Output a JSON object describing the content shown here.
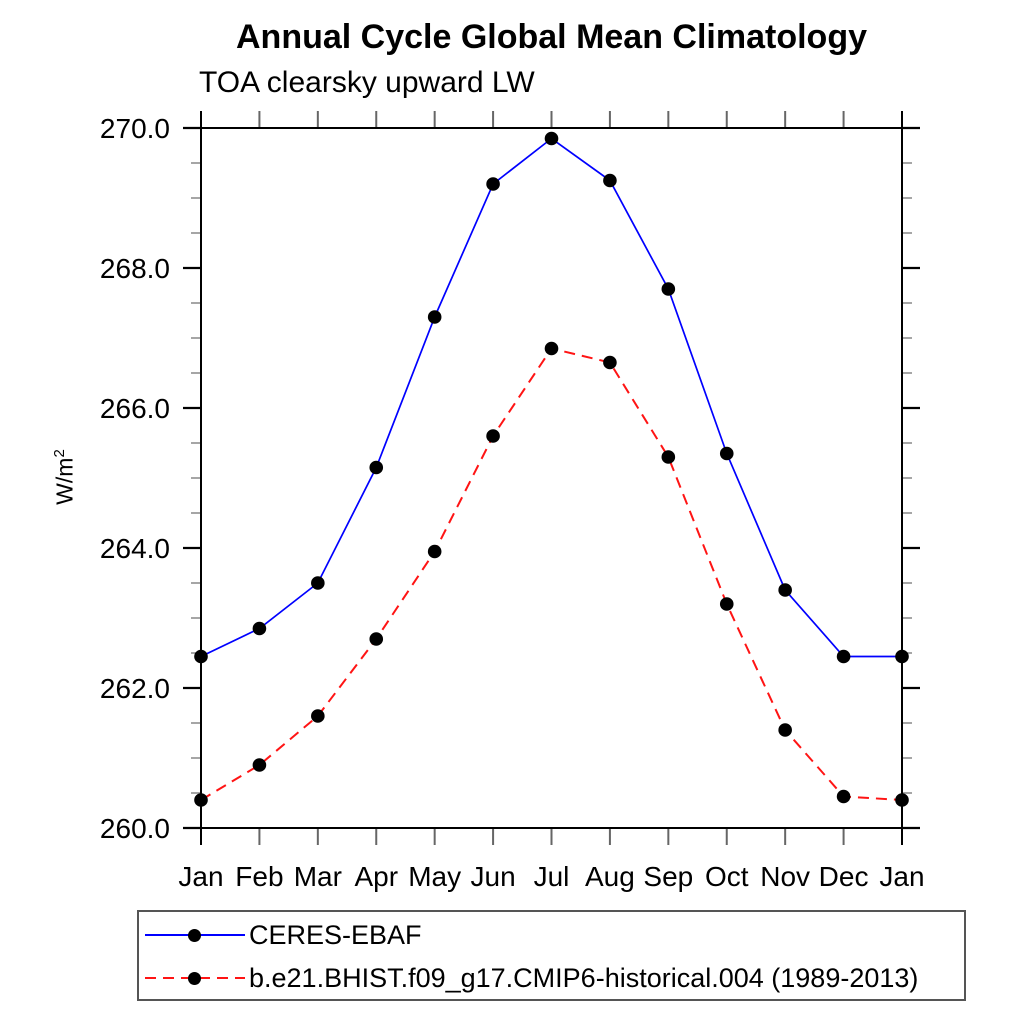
{
  "page": {
    "background": "#ffffff"
  },
  "chart_data": {
    "type": "line",
    "title": "Annual Cycle Global Mean Climatology",
    "subtitle": "TOA clearsky upward LW",
    "ylabel_base": "W/m",
    "ylabel_exponent": "2",
    "categories": [
      "Jan",
      "Feb",
      "Mar",
      "Apr",
      "May",
      "Jun",
      "Jul",
      "Aug",
      "Sep",
      "Oct",
      "Nov",
      "Dec",
      "Jan"
    ],
    "ylim": [
      260.0,
      270.0
    ],
    "ytick_major_step": 2.0,
    "ytick_minor_step": 0.5,
    "ytick_labels": [
      "260.0",
      "262.0",
      "264.0",
      "266.0",
      "268.0",
      "270.0"
    ],
    "grid": false,
    "legend_position": "bottom-left",
    "axis_color": "#000000",
    "minor_tick_color": "#888888",
    "month_tick_color": "#666666",
    "marker_color": "#000000",
    "series": [
      {
        "name": "CERES-EBAF",
        "color": "#0000ff",
        "line_style": "solid",
        "marker": "circle",
        "values": [
          262.45,
          262.85,
          263.5,
          265.15,
          267.3,
          269.2,
          269.85,
          269.25,
          267.7,
          265.35,
          263.4,
          262.45,
          262.45
        ]
      },
      {
        "name": "b.e21.BHIST.f09_g17.CMIP6-historical.004 (1989-2013)",
        "color": "#ff1414",
        "line_style": "dashed",
        "marker": "circle",
        "values": [
          260.4,
          260.9,
          261.6,
          262.7,
          263.95,
          265.6,
          266.85,
          266.65,
          265.3,
          263.2,
          261.4,
          260.45,
          260.4
        ]
      }
    ]
  }
}
